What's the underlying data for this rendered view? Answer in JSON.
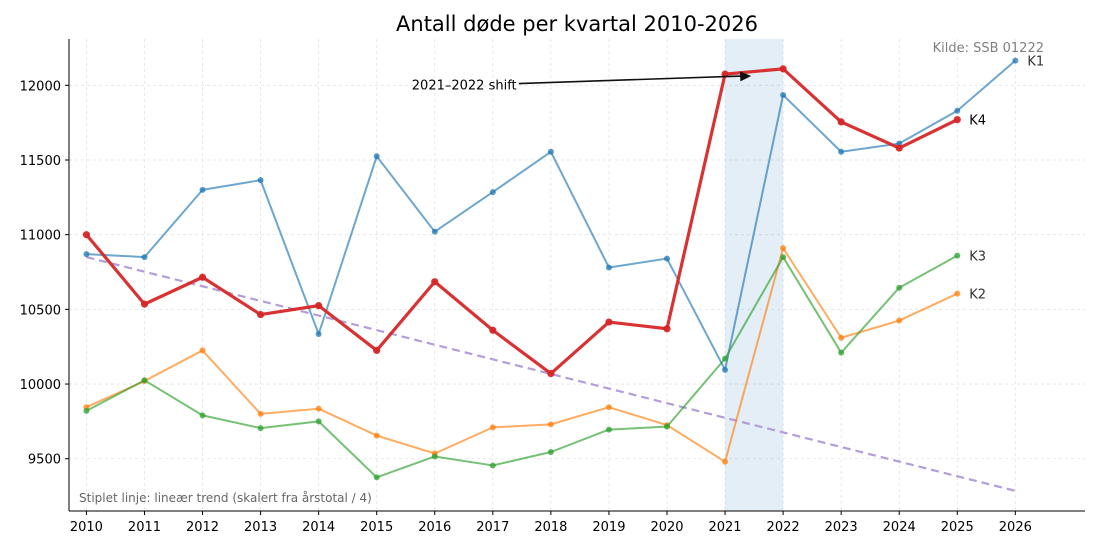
{
  "chart_data": {
    "type": "line",
    "title": "Antall døde per kvartal 2010-2026",
    "xlabel": "",
    "ylabel": "",
    "xlim": [
      2009.7,
      2027.2
    ],
    "ylim": [
      9150,
      12310
    ],
    "x_ticks": [
      2010,
      2011,
      2012,
      2013,
      2014,
      2015,
      2016,
      2017,
      2018,
      2019,
      2020,
      2021,
      2022,
      2023,
      2024,
      2025,
      2026
    ],
    "y_ticks": [
      9500,
      10000,
      10500,
      11000,
      11500,
      12000
    ],
    "grid": true,
    "source_note": "Kilde: SSB 01222",
    "footnote": "Stiplet linje: lineær trend (skalert fra årstotal / 4)",
    "highlight_span": [
      2021,
      2022
    ],
    "annotation": {
      "text": "2021–2022 shift",
      "text_at": [
        2016.5,
        12005
      ],
      "arrow_to": [
        2021.45,
        12062
      ]
    },
    "series": [
      {
        "name": "K1",
        "color": "#1f77b4",
        "x": [
          2010,
          2011,
          2012,
          2013,
          2014,
          2015,
          2016,
          2017,
          2018,
          2019,
          2020,
          2021,
          2022,
          2023,
          2024,
          2025,
          2026
        ],
        "values": [
          10870,
          10850,
          11300,
          11365,
          10335,
          11525,
          11020,
          11285,
          11555,
          10780,
          10840,
          10095,
          11935,
          11555,
          11610,
          11830,
          12165
        ]
      },
      {
        "name": "K2",
        "color": "#ff7f0e",
        "x": [
          2010,
          2011,
          2012,
          2013,
          2014,
          2015,
          2016,
          2017,
          2018,
          2019,
          2020,
          2021,
          2022,
          2023,
          2024,
          2025
        ],
        "values": [
          9845,
          10020,
          10225,
          9800,
          9835,
          9655,
          9535,
          9710,
          9730,
          9845,
          9725,
          9480,
          10910,
          10310,
          10425,
          10605
        ]
      },
      {
        "name": "K3",
        "color": "#2ca02c",
        "x": [
          2010,
          2011,
          2012,
          2013,
          2014,
          2015,
          2016,
          2017,
          2018,
          2019,
          2020,
          2021,
          2022,
          2023,
          2024,
          2025
        ],
        "values": [
          9820,
          10025,
          9790,
          9705,
          9750,
          9375,
          9515,
          9455,
          9545,
          9695,
          9715,
          10170,
          10850,
          10210,
          10645,
          10860
        ]
      },
      {
        "name": "K4",
        "color": "#d62728",
        "x": [
          2010,
          2011,
          2012,
          2013,
          2014,
          2015,
          2016,
          2017,
          2018,
          2019,
          2020,
          2021,
          2022,
          2023,
          2024,
          2025
        ],
        "values": [
          11000,
          10535,
          10715,
          10465,
          10525,
          10225,
          10685,
          10360,
          10070,
          10415,
          10370,
          12075,
          12110,
          11755,
          11580,
          11770
        ]
      }
    ],
    "trend": {
      "color": "#b39ddb",
      "x": [
        2010,
        2026
      ],
      "values": [
        10850,
        9285
      ]
    }
  }
}
